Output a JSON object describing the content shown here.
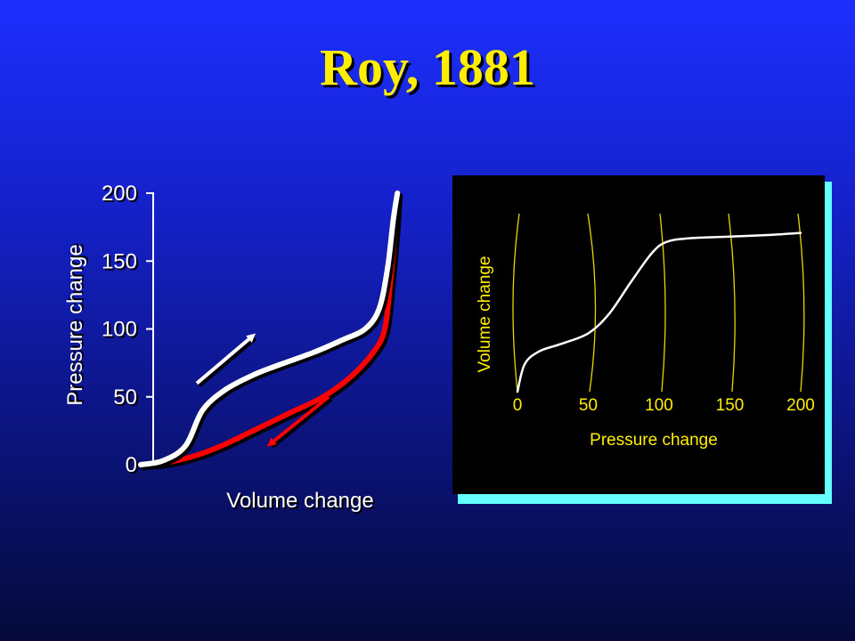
{
  "slide": {
    "title": "Roy, 1881"
  },
  "colors": {
    "title": "#ffee00",
    "loading_curve": "#ffffff",
    "unloading_curve": "#ff0000",
    "panel_background": "#000000",
    "panel_shadow": "#66ffff",
    "kymograph_text": "#ffee00"
  },
  "chart_data": [
    {
      "type": "line",
      "title": "",
      "xlabel": "Volume change",
      "ylabel": "Pressure change",
      "yticks": [
        0,
        50,
        100,
        150,
        200
      ],
      "ylim": [
        0,
        200
      ],
      "x_unit": "relative volume (0-1, unlabeled)",
      "xlim": [
        0,
        1
      ],
      "series": [
        {
          "direction": "loading",
          "color": "#ffffff",
          "x": [
            0.0,
            0.08,
            0.16,
            0.22,
            0.3,
            0.4,
            0.5,
            0.62,
            0.72,
            0.8,
            0.85,
            0.88,
            0.9,
            0.915
          ],
          "y": [
            0,
            3,
            14,
            40,
            55,
            66,
            74,
            83,
            92,
            100,
            115,
            145,
            180,
            200
          ]
        },
        {
          "direction": "unloading",
          "color": "#ff0000",
          "x": [
            0.915,
            0.905,
            0.89,
            0.87,
            0.83,
            0.75,
            0.65,
            0.52,
            0.4,
            0.3,
            0.2,
            0.1,
            0.0
          ],
          "y": [
            200,
            170,
            135,
            100,
            83,
            65,
            50,
            37,
            25,
            15,
            7,
            2,
            0
          ]
        }
      ],
      "arrows": [
        {
          "direction": "loading",
          "color": "#ffffff",
          "from": [
            0.2,
            60
          ],
          "to": [
            0.4,
            95
          ]
        },
        {
          "direction": "unloading",
          "color": "#ff0000",
          "from": [
            0.67,
            50
          ],
          "to": [
            0.46,
            15
          ]
        }
      ]
    },
    {
      "type": "line",
      "title": "",
      "xlabel": "Pressure change",
      "ylabel": "Volume change",
      "xticks": [
        0,
        50,
        100,
        150,
        200
      ],
      "xlim": [
        0,
        200
      ],
      "y_unit": "relative volume (0-1, unlabeled)",
      "ylim": [
        0,
        1
      ],
      "series": [
        {
          "direction": "recording",
          "color": "#ffffff",
          "x": [
            0,
            5,
            15,
            30,
            50,
            65,
            80,
            95,
            105,
            120,
            150,
            180,
            200
          ],
          "y": [
            0.0,
            0.15,
            0.22,
            0.26,
            0.32,
            0.43,
            0.6,
            0.76,
            0.82,
            0.84,
            0.85,
            0.86,
            0.87
          ]
        }
      ]
    }
  ]
}
